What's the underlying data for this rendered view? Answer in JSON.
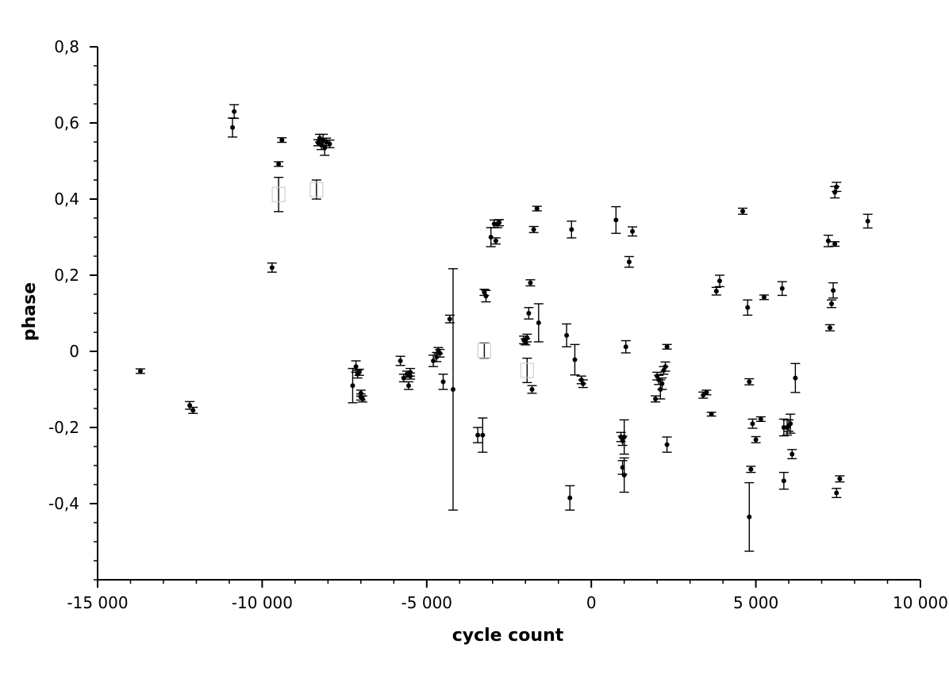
{
  "chart_data": {
    "type": "scatter",
    "xlabel": "cycle count",
    "ylabel": "phase",
    "xlim": [
      -15000,
      10000
    ],
    "ylim": [
      -0.6,
      0.8
    ],
    "xticks": [
      -15000,
      -10000,
      -5000,
      0,
      5000,
      10000
    ],
    "xtick_labels": [
      "-15 000",
      "-10 000",
      "-5 000",
      "0",
      "5 000",
      "10 000"
    ],
    "yticks": [
      -0.4,
      -0.2,
      0,
      0.2,
      0.4,
      0.6,
      0.8
    ],
    "ytick_labels": [
      "-0,4",
      "-0,2",
      "0",
      "0,2",
      "0,4",
      "0,6",
      "0,8"
    ],
    "grid": false,
    "legend": "none",
    "colors": {
      "points": "#000000",
      "open_markers": "#cfcfcf"
    },
    "series": [
      {
        "marker": "filled-circle",
        "points": [
          {
            "x": -13700,
            "y": -0.052,
            "err": 0.006
          },
          {
            "x": -12200,
            "y": -0.142,
            "err": 0.01
          },
          {
            "x": -12100,
            "y": -0.155,
            "err": 0.008
          },
          {
            "x": -10900,
            "y": 0.588,
            "err": 0.025
          },
          {
            "x": -10850,
            "y": 0.63,
            "err": 0.018
          },
          {
            "x": -9700,
            "y": 0.22,
            "err": 0.012
          },
          {
            "x": -9500,
            "y": 0.492,
            "err": 0.006
          },
          {
            "x": -9400,
            "y": 0.555,
            "err": 0.006
          },
          {
            "x": -8300,
            "y": 0.548,
            "err": 0.008
          },
          {
            "x": -8250,
            "y": 0.56,
            "err": 0.01
          },
          {
            "x": -8200,
            "y": 0.542,
            "err": 0.012
          },
          {
            "x": -8150,
            "y": 0.555,
            "err": 0.015
          },
          {
            "x": -8100,
            "y": 0.535,
            "err": 0.02
          },
          {
            "x": -8050,
            "y": 0.55,
            "err": 0.01
          },
          {
            "x": -7950,
            "y": 0.545,
            "err": 0.01
          },
          {
            "x": -7250,
            "y": -0.09,
            "err": 0.045
          },
          {
            "x": -7150,
            "y": -0.04,
            "err": 0.015
          },
          {
            "x": -7100,
            "y": -0.06,
            "err": 0.01
          },
          {
            "x": -7050,
            "y": -0.055,
            "err": 0.008
          },
          {
            "x": -7000,
            "y": -0.11,
            "err": 0.008
          },
          {
            "x": -7000,
            "y": -0.12,
            "err": 0.008
          },
          {
            "x": -6950,
            "y": -0.125,
            "err": 0.008
          },
          {
            "x": -5800,
            "y": -0.025,
            "err": 0.012
          },
          {
            "x": -5700,
            "y": -0.07,
            "err": 0.01
          },
          {
            "x": -5600,
            "y": -0.06,
            "err": 0.008
          },
          {
            "x": -5550,
            "y": -0.09,
            "err": 0.01
          },
          {
            "x": -5500,
            "y": -0.065,
            "err": 0.008
          },
          {
            "x": -5500,
            "y": -0.055,
            "err": 0.01
          },
          {
            "x": -4800,
            "y": -0.025,
            "err": 0.015
          },
          {
            "x": -4700,
            "y": -0.015,
            "err": 0.012
          },
          {
            "x": -4650,
            "y": 0.002,
            "err": 0.008
          },
          {
            "x": -4600,
            "y": -0.005,
            "err": 0.01
          },
          {
            "x": -4500,
            "y": -0.08,
            "err": 0.02
          },
          {
            "x": -4300,
            "y": 0.085,
            "err": 0.01
          },
          {
            "x": -4200,
            "y": -0.1,
            "err": 0.317
          },
          {
            "x": -3450,
            "y": -0.22,
            "err": 0.02
          },
          {
            "x": -3300,
            "y": -0.22,
            "err": 0.045
          },
          {
            "x": -3250,
            "y": 0.155,
            "err": 0.008
          },
          {
            "x": -3200,
            "y": 0.145,
            "err": 0.015
          },
          {
            "x": -3050,
            "y": 0.3,
            "err": 0.025
          },
          {
            "x": -2950,
            "y": 0.335,
            "err": 0.01
          },
          {
            "x": -2900,
            "y": 0.29,
            "err": 0.008
          },
          {
            "x": -2850,
            "y": 0.335,
            "err": 0.01
          },
          {
            "x": -2800,
            "y": 0.338,
            "err": 0.008
          },
          {
            "x": -2050,
            "y": 0.03,
            "err": 0.01
          },
          {
            "x": -2000,
            "y": 0.025,
            "err": 0.008
          },
          {
            "x": -1950,
            "y": 0.035,
            "err": 0.01
          },
          {
            "x": -1900,
            "y": 0.1,
            "err": 0.015
          },
          {
            "x": -1850,
            "y": 0.18,
            "err": 0.008
          },
          {
            "x": -1800,
            "y": -0.1,
            "err": 0.01
          },
          {
            "x": -1750,
            "y": 0.32,
            "err": 0.008
          },
          {
            "x": -1650,
            "y": 0.375,
            "err": 0.006
          },
          {
            "x": -1600,
            "y": 0.075,
            "err": 0.05
          },
          {
            "x": -750,
            "y": 0.042,
            "err": 0.03
          },
          {
            "x": -650,
            "y": -0.385,
            "err": 0.032
          },
          {
            "x": -600,
            "y": 0.32,
            "err": 0.022
          },
          {
            "x": -500,
            "y": -0.022,
            "err": 0.04
          },
          {
            "x": -300,
            "y": -0.075,
            "err": 0.01
          },
          {
            "x": -250,
            "y": -0.085,
            "err": 0.01
          },
          {
            "x": 750,
            "y": 0.345,
            "err": 0.035
          },
          {
            "x": 900,
            "y": -0.225,
            "err": 0.012
          },
          {
            "x": 950,
            "y": -0.305,
            "err": 0.018
          },
          {
            "x": 950,
            "y": -0.235,
            "err": 0.012
          },
          {
            "x": 1000,
            "y": -0.225,
            "err": 0.045
          },
          {
            "x": 1000,
            "y": -0.325,
            "err": 0.045
          },
          {
            "x": 1050,
            "y": 0.012,
            "err": 0.016
          },
          {
            "x": 1150,
            "y": 0.235,
            "err": 0.014
          },
          {
            "x": 1250,
            "y": 0.315,
            "err": 0.012
          },
          {
            "x": 1950,
            "y": -0.125,
            "err": 0.008
          },
          {
            "x": 2000,
            "y": -0.065,
            "err": 0.01
          },
          {
            "x": 2050,
            "y": -0.075,
            "err": 0.012
          },
          {
            "x": 2100,
            "y": -0.1,
            "err": 0.025
          },
          {
            "x": 2150,
            "y": -0.085,
            "err": 0.015
          },
          {
            "x": 2200,
            "y": -0.05,
            "err": 0.01
          },
          {
            "x": 2250,
            "y": -0.04,
            "err": 0.012
          },
          {
            "x": 2300,
            "y": -0.245,
            "err": 0.02
          },
          {
            "x": 2300,
            "y": 0.012,
            "err": 0.006
          },
          {
            "x": 3400,
            "y": -0.115,
            "err": 0.008
          },
          {
            "x": 3500,
            "y": -0.108,
            "err": 0.006
          },
          {
            "x": 3650,
            "y": -0.165,
            "err": 0.005
          },
          {
            "x": 3800,
            "y": 0.158,
            "err": 0.01
          },
          {
            "x": 3900,
            "y": 0.185,
            "err": 0.015
          },
          {
            "x": 4600,
            "y": 0.368,
            "err": 0.008
          },
          {
            "x": 4750,
            "y": 0.115,
            "err": 0.02
          },
          {
            "x": 4800,
            "y": -0.08,
            "err": 0.008
          },
          {
            "x": 4850,
            "y": -0.31,
            "err": 0.008
          },
          {
            "x": 4800,
            "y": -0.435,
            "err": 0.09
          },
          {
            "x": 4900,
            "y": -0.19,
            "err": 0.012
          },
          {
            "x": 5000,
            "y": -0.232,
            "err": 0.008
          },
          {
            "x": 5150,
            "y": -0.178,
            "err": 0.006
          },
          {
            "x": 5250,
            "y": 0.142,
            "err": 0.006
          },
          {
            "x": 5800,
            "y": 0.165,
            "err": 0.018
          },
          {
            "x": 5850,
            "y": -0.2,
            "err": 0.022
          },
          {
            "x": 5850,
            "y": -0.34,
            "err": 0.022
          },
          {
            "x": 5950,
            "y": -0.2,
            "err": 0.02
          },
          {
            "x": 6000,
            "y": -0.195,
            "err": 0.015
          },
          {
            "x": 6050,
            "y": -0.19,
            "err": 0.025
          },
          {
            "x": 6100,
            "y": -0.27,
            "err": 0.012
          },
          {
            "x": 6200,
            "y": -0.07,
            "err": 0.038
          },
          {
            "x": 7200,
            "y": 0.29,
            "err": 0.015
          },
          {
            "x": 7250,
            "y": 0.062,
            "err": 0.008
          },
          {
            "x": 7300,
            "y": 0.125,
            "err": 0.01
          },
          {
            "x": 7350,
            "y": 0.16,
            "err": 0.02
          },
          {
            "x": 7400,
            "y": 0.282,
            "err": 0.006
          },
          {
            "x": 7400,
            "y": 0.418,
            "err": 0.015
          },
          {
            "x": 7450,
            "y": 0.432,
            "err": 0.012
          },
          {
            "x": 7450,
            "y": -0.372,
            "err": 0.012
          },
          {
            "x": 7550,
            "y": -0.335,
            "err": 0.008
          },
          {
            "x": 8400,
            "y": 0.342,
            "err": 0.018
          }
        ]
      },
      {
        "marker": "open-square",
        "points": [
          {
            "x": -9500,
            "y": 0.412,
            "err": 0.045
          },
          {
            "x": -8350,
            "y": 0.425,
            "err": 0.025
          },
          {
            "x": -3250,
            "y": 0.002,
            "err": 0.02
          },
          {
            "x": -1950,
            "y": -0.05,
            "err": 0.032
          }
        ]
      }
    ]
  }
}
